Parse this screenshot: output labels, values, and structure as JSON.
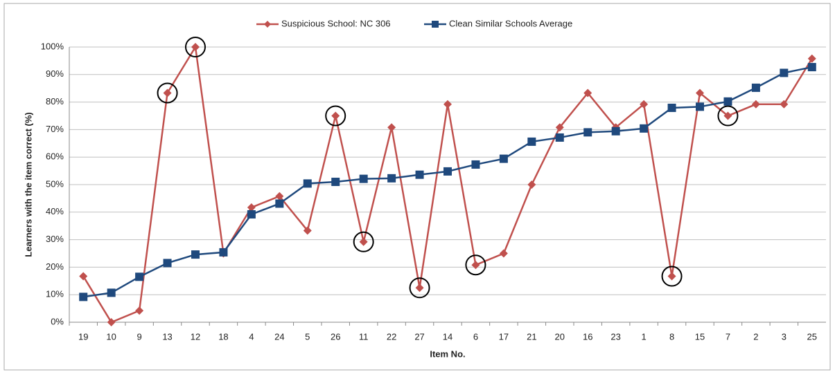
{
  "chart_data": {
    "type": "line",
    "x_label": "Item No.",
    "y_label": "Learners with the item correct (%)",
    "categories": [
      "19",
      "10",
      "9",
      "13",
      "12",
      "18",
      "4",
      "24",
      "5",
      "26",
      "11",
      "22",
      "27",
      "14",
      "6",
      "17",
      "21",
      "20",
      "16",
      "23",
      "1",
      "8",
      "15",
      "7",
      "2",
      "3",
      "25"
    ],
    "series": [
      {
        "name": "Suspicious School: NC 306",
        "color": "#c0504d",
        "marker": "diamond",
        "values": [
          16.7,
          0,
          4.2,
          83.3,
          100,
          25,
          41.7,
          45.8,
          33.3,
          75,
          29.2,
          70.8,
          12.5,
          79.2,
          20.8,
          25,
          50,
          70.8,
          83.3,
          70.8,
          79.2,
          16.7,
          83.3,
          75,
          79.2,
          79.2,
          95.8
        ],
        "circled": [
          3,
          4,
          9,
          10,
          12,
          14,
          21,
          23
        ]
      },
      {
        "name": "Clean Similar Schools Average",
        "color": "#1f497d",
        "marker": "square",
        "values": [
          9.2,
          10.7,
          16.5,
          21.5,
          24.6,
          25.4,
          39.2,
          43.1,
          50.4,
          51.0,
          52.1,
          52.3,
          53.6,
          54.8,
          57.3,
          59.4,
          65.6,
          67.1,
          69.0,
          69.4,
          70.4,
          77.9,
          78.3,
          80.2,
          85.2,
          90.6,
          92.7
        ]
      }
    ],
    "ylim": [
      0,
      100
    ],
    "yticks": [
      {
        "value": 0,
        "label": "0%"
      },
      {
        "value": 10,
        "label": "10%"
      },
      {
        "value": 20,
        "label": "20%"
      },
      {
        "value": 30,
        "label": "30%"
      },
      {
        "value": 40,
        "label": "40%"
      },
      {
        "value": 50,
        "label": "50%"
      },
      {
        "value": 60,
        "label": "60%"
      },
      {
        "value": 70,
        "label": "70%"
      },
      {
        "value": 80,
        "label": "80%"
      },
      {
        "value": 90,
        "label": "90%"
      },
      {
        "value": 100,
        "label": "100%"
      }
    ],
    "grid": true,
    "legend": "top"
  }
}
